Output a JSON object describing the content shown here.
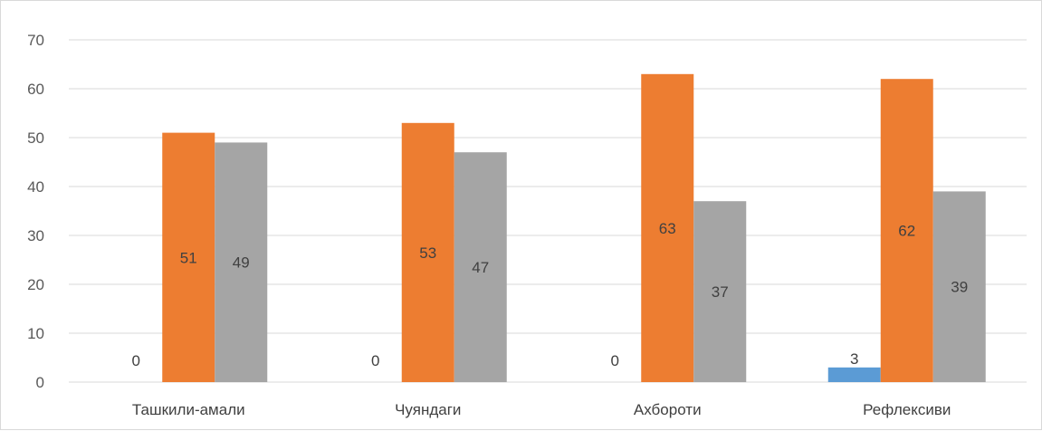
{
  "chart_data": {
    "type": "bar",
    "title": "",
    "xlabel": "",
    "ylabel": "",
    "ylim": [
      0,
      70
    ],
    "yticks": [
      0,
      10,
      20,
      30,
      40,
      50,
      60,
      70
    ],
    "grid": true,
    "legend": "none",
    "categories": [
      "Ташкили-амали",
      "Чуяндаги",
      "Ахбороти",
      "Рефлексиви"
    ],
    "series": [
      {
        "color": "#5b9bd5",
        "values": [
          0,
          0,
          0,
          3
        ]
      },
      {
        "color": "#ed7d31",
        "values": [
          51,
          53,
          63,
          62
        ]
      },
      {
        "color": "#a5a5a5",
        "values": [
          49,
          47,
          37,
          39
        ]
      }
    ]
  }
}
